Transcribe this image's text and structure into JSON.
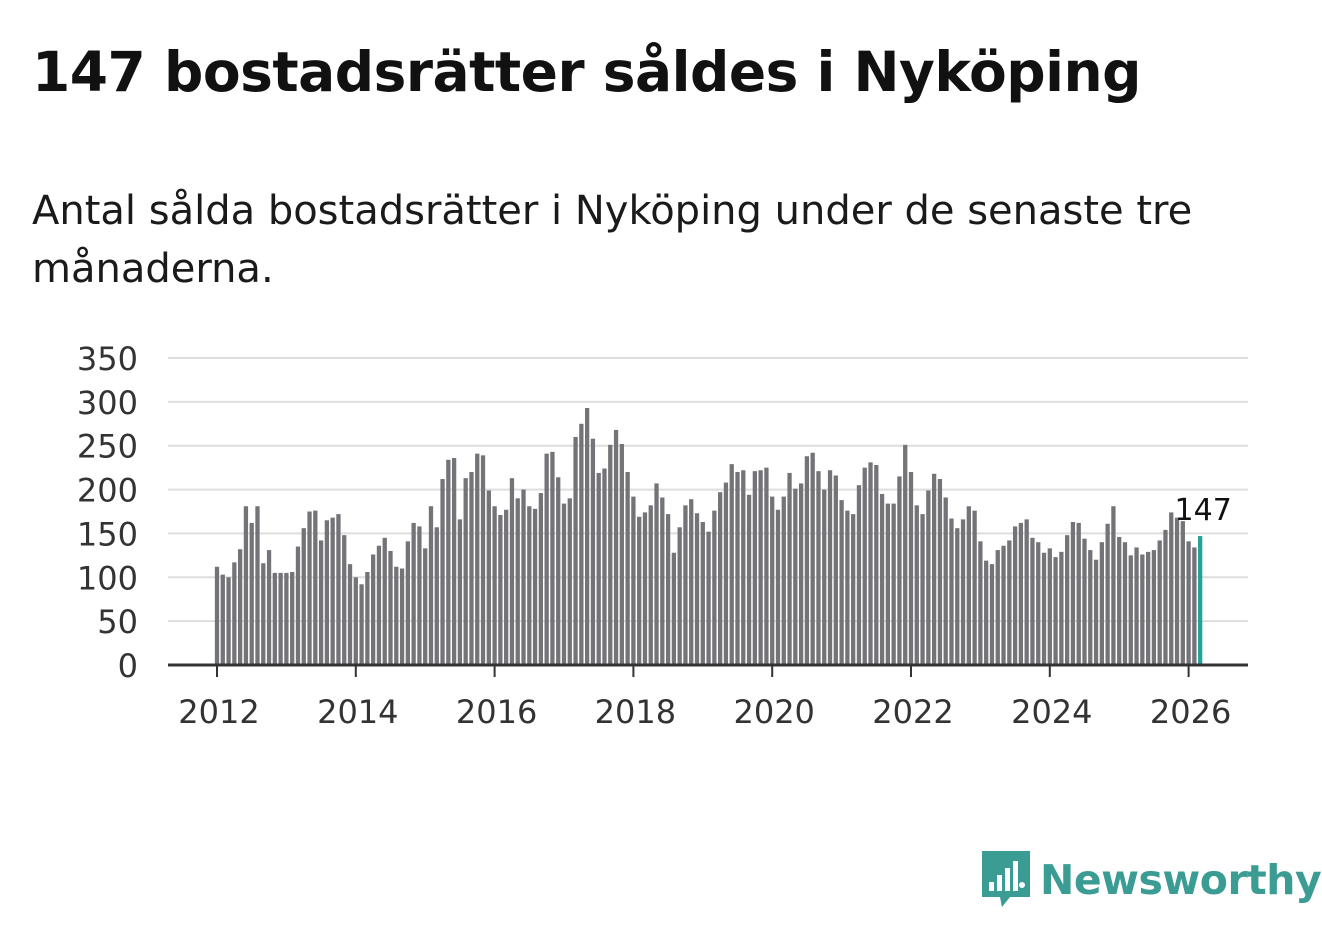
{
  "header": {
    "title": "147 bostadsrätter såldes i Nyköping",
    "subtitle": "Antal sålda bostadsrätter i Nyköping under de senaste tre månaderna."
  },
  "brand": {
    "name": "Newsworthy",
    "icon": "newsworthy-logo-icon",
    "color": "#3a9c93"
  },
  "chart_data": {
    "type": "bar",
    "title": "147 bostadsrätter såldes i Nyköping",
    "xlabel": "",
    "ylabel": "",
    "ylim": [
      0,
      350
    ],
    "yticks": [
      "0",
      "50",
      "100",
      "150",
      "200",
      "250",
      "300",
      "350"
    ],
    "xticks": [
      "2012",
      "2014",
      "2016",
      "2018",
      "2020",
      "2022",
      "2024",
      "2026"
    ],
    "x_start": "2012-01",
    "highlight_label": "147",
    "bar_color": "#737378",
    "highlight_color": "#27a396",
    "values": [
      112,
      103,
      100,
      117,
      132,
      181,
      162,
      181,
      116,
      131,
      105,
      105,
      105,
      106,
      135,
      156,
      175,
      176,
      142,
      165,
      168,
      172,
      148,
      115,
      100,
      92,
      106,
      126,
      136,
      145,
      130,
      112,
      110,
      141,
      162,
      158,
      133,
      181,
      157,
      212,
      234,
      236,
      166,
      213,
      220,
      241,
      239,
      199,
      181,
      171,
      177,
      213,
      190,
      200,
      181,
      178,
      196,
      241,
      243,
      214,
      184,
      190,
      260,
      275,
      293,
      258,
      219,
      224,
      251,
      268,
      252,
      220,
      192,
      169,
      174,
      182,
      207,
      191,
      172,
      128,
      157,
      182,
      189,
      173,
      163,
      152,
      176,
      197,
      208,
      229,
      220,
      222,
      194,
      221,
      222,
      225,
      192,
      177,
      192,
      219,
      201,
      207,
      238,
      242,
      221,
      200,
      222,
      216,
      188,
      176,
      172,
      205,
      225,
      231,
      228,
      195,
      184,
      184,
      215,
      251,
      220,
      182,
      172,
      199,
      218,
      212,
      191,
      167,
      156,
      166,
      181,
      176,
      141,
      119,
      115,
      131,
      136,
      142,
      158,
      162,
      166,
      145,
      140,
      128,
      133,
      123,
      129,
      148,
      163,
      162,
      144,
      131,
      120,
      140,
      161,
      181,
      146,
      140,
      125,
      134,
      126,
      129,
      131,
      142,
      154,
      174,
      168,
      164,
      141,
      134,
      147
    ]
  }
}
